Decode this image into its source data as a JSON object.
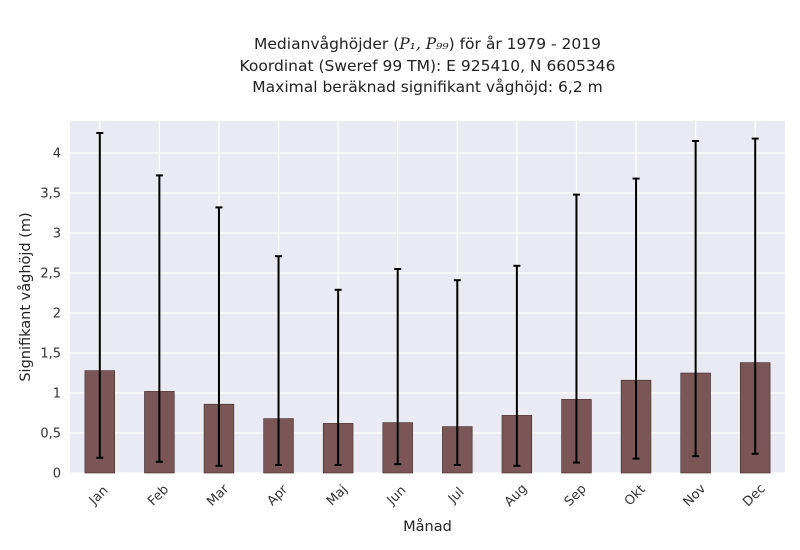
{
  "chart_data": {
    "type": "bar",
    "title": {
      "line1_prefix": "Medianvåghöjder (",
      "line1_math": "P₁, P₉₉",
      "line1_suffix": ") för år 1979 - 2019",
      "line2": "Koordinat (Sweref 99 TM): E 925410, N 6605346",
      "line3": "Maximal beräknad signifikant våghöjd: 6,2 m"
    },
    "xlabel": "Månad",
    "ylabel": "Signifikant våghöjd (m)",
    "categories": [
      "Jan",
      "Feb",
      "Mar",
      "Apr",
      "Maj",
      "Jun",
      "Jul",
      "Aug",
      "Sep",
      "Okt",
      "Nov",
      "Dec"
    ],
    "values": [
      1.28,
      1.02,
      0.86,
      0.68,
      0.62,
      0.63,
      0.58,
      0.72,
      0.92,
      1.16,
      1.25,
      1.38
    ],
    "p1": [
      0.19,
      0.14,
      0.09,
      0.1,
      0.1,
      0.11,
      0.1,
      0.09,
      0.13,
      0.18,
      0.21,
      0.24
    ],
    "p99": [
      4.25,
      3.72,
      3.32,
      2.71,
      2.29,
      2.55,
      2.41,
      2.59,
      3.48,
      3.68,
      4.15,
      4.18
    ],
    "ylim": [
      0,
      4.4
    ],
    "yticks": [
      0,
      0.5,
      1,
      1.5,
      2,
      2.5,
      3,
      3.5,
      4
    ],
    "ytick_labels": [
      "0",
      "0,5",
      "1",
      "1,5",
      "2",
      "2,5",
      "3",
      "3,5",
      "4"
    ],
    "grid": true,
    "colors": {
      "bar": "#7b5656",
      "bar_edge": "#3b2a2a",
      "errorbar": "#000000",
      "plot_bg": "#eaeaf2",
      "grid": "#ffffff"
    }
  }
}
